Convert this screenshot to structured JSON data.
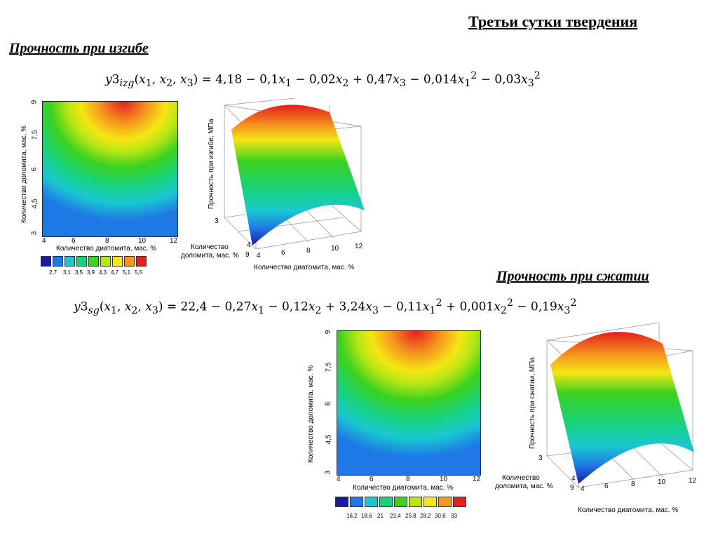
{
  "header": {
    "title": "Третьи сутки твердения"
  },
  "bending": {
    "heading": "Прочность при изгибе",
    "formula": {
      "lhs": "y3",
      "sub": "izg",
      "args": "(x",
      "rest": "4,18 − 0,1x₁ − 0,02x₂ + 0,47x₃ − 0,014x₁² − 0,03x₃²"
    },
    "formula_text": "y3izg(x1, x2, x3) = 4,18 − 0,1x1 − 0,02x2 + 0,47x3 − 0,014x1² − 0,03x3²",
    "contour": {
      "ylabel": "Количество доломита, мас. %",
      "xlabel": "Количество диатомита, мас. %",
      "yticks": [
        "9",
        "7,5",
        "6",
        "4,5",
        "3"
      ],
      "xticks": [
        "4",
        "6",
        "8",
        "10",
        "12"
      ]
    },
    "surface": {
      "zlabel": "Прочность при изгибе, МПа",
      "ylabel": "Количество\nдоломита, мас. %",
      "ylabel_l1": "Количество",
      "ylabel_l2": "доломита, мас. %",
      "xlabel": "Количество диатомита, мас. %",
      "yticks": [
        "3",
        "4",
        "9"
      ],
      "xticks": [
        "4",
        "6",
        "8",
        "10",
        "12"
      ]
    },
    "legend": [
      "2,7",
      "3,1",
      "3,5",
      "3,9",
      "4,3",
      "4,7",
      "5,1",
      "5,5"
    ]
  },
  "compression": {
    "heading": "Прочность при сжатии",
    "formula_text": "y3sg(x1, x2, x3) = 22,4 − 0,27x1 − 0,12x2 + 3,24x3 − 0,11x1² + 0,001x2² − 0,19x3²",
    "contour": {
      "ylabel": "Количество доломита, мас. %",
      "xlabel": "Количество диатомита, мас. %",
      "yticks": [
        "9",
        "7,5",
        "6",
        "4,5",
        "3"
      ],
      "xticks": [
        "4",
        "6",
        "8",
        "10",
        "12"
      ]
    },
    "surface": {
      "zlabel": "Прочность при сжатии, МПа",
      "ylabel_l1": "Количество",
      "ylabel_l2": "доломита, мас. %",
      "xlabel": "Количество диатомита, мас. %",
      "yticks": [
        "3",
        "4",
        "9"
      ],
      "xticks": [
        "4",
        "6",
        "8",
        "10",
        "12"
      ]
    },
    "legend": [
      "16,2",
      "18,6",
      "21",
      "23,4",
      "25,8",
      "28,2",
      "30,6",
      "33"
    ]
  },
  "colors": {
    "scale": [
      "#1a1aa8",
      "#1e78e6",
      "#19c8d0",
      "#18d27a",
      "#3cd21e",
      "#b8e614",
      "#f5e614",
      "#f5961e",
      "#e61e1e"
    ]
  }
}
